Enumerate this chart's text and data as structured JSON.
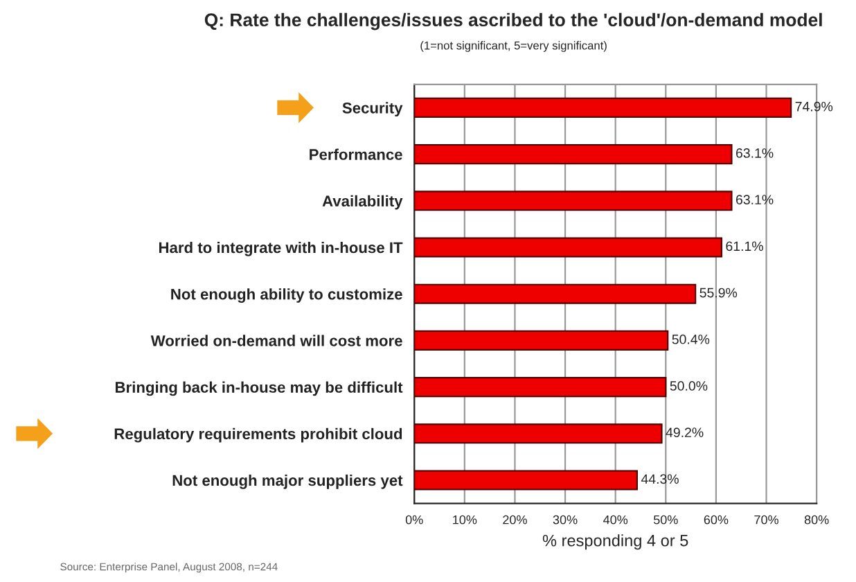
{
  "chart_data": {
    "type": "bar",
    "orientation": "horizontal",
    "title": "Q: Rate the challenges/issues ascribed to the 'cloud'/on-demand model",
    "subtitle": "(1=not significant, 5=very significant)",
    "xlabel": "% responding 4 or 5",
    "categories": [
      "Security",
      "Performance",
      "Availability",
      "Hard to integrate with in-house IT",
      "Not enough ability to customize",
      "Worried on-demand will cost more",
      "Bringing back in-house may be difficult",
      "Regulatory requirements prohibit cloud",
      "Not enough major suppliers yet"
    ],
    "values": [
      74.9,
      63.1,
      63.1,
      61.1,
      55.9,
      50.4,
      50.0,
      49.2,
      44.3
    ],
    "value_labels": [
      "74.9%",
      "63.1%",
      "63.1%",
      "61.1%",
      "55.9%",
      "50.4%",
      "50.0%",
      "49.2%",
      "44.3%"
    ],
    "color": "#ee0000",
    "xlim": [
      0,
      80
    ],
    "xticks": [
      {
        "value": 0,
        "label": "0%"
      },
      {
        "value": 10,
        "label": "10%"
      },
      {
        "value": 20,
        "label": "20%"
      },
      {
        "value": 30,
        "label": "30%"
      },
      {
        "value": 40,
        "label": "40%"
      },
      {
        "value": 50,
        "label": "50%"
      },
      {
        "value": 60,
        "label": "60%"
      },
      {
        "value": 70,
        "label": "70%"
      },
      {
        "value": 80,
        "label": "80%"
      }
    ],
    "grid": "x",
    "annotations": [
      "Source: Enterprise Panel, August 2008, n=244"
    ]
  }
}
